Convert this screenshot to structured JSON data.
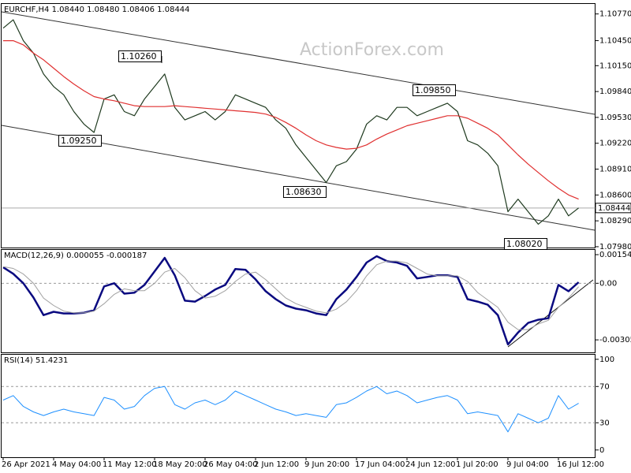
{
  "chart_data": [
    {
      "type": "line",
      "title": "EURCHF,H4  1.08440 1.08480 1.08406 1.08444",
      "watermark": "ActionForex.com",
      "ylim": [
        1.0797,
        1.1089
      ],
      "yticks": [
        {
          "value": 1.1077,
          "label": "1.10770"
        },
        {
          "value": 1.1045,
          "label": "1.10450"
        },
        {
          "value": 1.1015,
          "label": "1.10150"
        },
        {
          "value": 1.0984,
          "label": "1.09840"
        },
        {
          "value": 1.0953,
          "label": "1.09530"
        },
        {
          "value": 1.0922,
          "label": "1.09220"
        },
        {
          "value": 1.0891,
          "label": "1.08910"
        },
        {
          "value": 1.086,
          "label": "1.08600"
        },
        {
          "value": 1.0829,
          "label": "1.08290"
        },
        {
          "value": 1.0798,
          "label": "1.07980"
        }
      ],
      "last_price": 1.08444,
      "annotations": [
        "1.10260",
        "1.09250",
        "1.08630",
        "1.09850",
        "1.08020"
      ],
      "series": [
        {
          "name": "EURCHF",
          "color": "#1f3a1f",
          "values": [
            1.106,
            1.107,
            1.1045,
            1.103,
            1.1005,
            1.099,
            1.098,
            1.096,
            1.0945,
            1.0935,
            1.0975,
            1.098,
            1.096,
            1.0955,
            1.0975,
            1.099,
            1.1005,
            1.0965,
            1.095,
            1.0955,
            1.096,
            1.095,
            1.096,
            1.098,
            1.0975,
            1.097,
            1.0965,
            1.095,
            1.094,
            1.092,
            1.0905,
            1.089,
            1.0875,
            1.0895,
            1.09,
            1.0915,
            1.0945,
            1.0955,
            1.095,
            1.0965,
            1.0965,
            1.0955,
            1.096,
            1.0965,
            1.097,
            1.096,
            1.0925,
            1.092,
            1.091,
            1.0895,
            1.084,
            1.0855,
            1.084,
            1.0825,
            1.0835,
            1.0855,
            1.0835,
            1.08444
          ]
        },
        {
          "name": "MA",
          "color": "#e03030",
          "values": [
            1.1045,
            1.1045,
            1.104,
            1.103,
            1.1022,
            1.1012,
            1.1002,
            1.0993,
            1.0985,
            1.0978,
            1.0975,
            1.0973,
            1.097,
            1.0967,
            1.0966,
            1.0966,
            1.0966,
            1.0967,
            1.0966,
            1.0965,
            1.0964,
            1.0963,
            1.0962,
            1.0961,
            1.096,
            1.0959,
            1.0957,
            1.0953,
            1.0947,
            1.094,
            1.0932,
            1.0925,
            1.092,
            1.0917,
            1.0915,
            1.0916,
            1.092,
            1.0927,
            1.0933,
            1.0938,
            1.0943,
            1.0946,
            1.0949,
            1.0952,
            1.0955,
            1.0955,
            1.0952,
            1.0946,
            1.094,
            1.0932,
            1.092,
            1.0908,
            1.0897,
            1.0887,
            1.0877,
            1.0868,
            1.086,
            1.0855
          ]
        }
      ]
    },
    {
      "type": "line",
      "title": "MACD(12,26,9) 0.000055 -0.000187",
      "ylim": [
        -0.00373,
        0.0018
      ],
      "yticks": [
        0.001544,
        {
          "value": 0,
          "label": "0.00"
        },
        -0.003054
      ],
      "levels": [
        0
      ],
      "series": [
        {
          "name": "MACD",
          "color": "#0a0a80",
          "width": 2.5,
          "values": [
            0.00086,
            0.00051,
            0,
            -0.00077,
            -0.00172,
            -0.00154,
            -0.00163,
            -0.00163,
            -0.00159,
            -0.00146,
            -0.00017,
            0,
            -0.00056,
            -0.00051,
            -9e-05,
            0.00064,
            0.00137,
            0.00043,
            -0.00094,
            -0.00099,
            -0.00069,
            -0.00034,
            -9e-05,
            0.00077,
            0.00073,
            0.00021,
            -0.00043,
            -0.00086,
            -0.0012,
            -0.00137,
            -0.00146,
            -0.00163,
            -0.00172,
            -0.00086,
            -0.00034,
            0.00034,
            0.00112,
            0.00146,
            0.0012,
            0.00112,
            0.00094,
            0.00026,
            0.00034,
            0.00043,
            0.00043,
            0.00034,
            -0.00086,
            -0.00099,
            -0.00116,
            -0.00172,
            -0.0033,
            -0.00266,
            -0.00214,
            -0.00197,
            -0.00189,
            -9e-05,
            -0.00043,
            5.5e-05
          ]
        },
        {
          "name": "Signal",
          "color": "#a0a0a0",
          "width": 1,
          "values": [
            0.0009,
            0.0008,
            0.0005,
            0,
            -0.0008,
            -0.0012,
            -0.0015,
            -0.0016,
            -0.0016,
            -0.0015,
            -0.0011,
            -0.0006,
            -0.0003,
            -0.0004,
            -0.0004,
            0,
            0.0006,
            0.0008,
            0.0003,
            -0.0004,
            -0.0008,
            -0.0007,
            -0.0004,
            0.0001,
            0.0005,
            0.0006,
            0.0002,
            -0.0003,
            -0.0008,
            -0.0011,
            -0.0013,
            -0.0015,
            -0.0016,
            -0.0014,
            -0.001,
            -0.0004,
            0.0004,
            0.001,
            0.0012,
            0.0012,
            0.0011,
            0.0008,
            0.0005,
            0.0004,
            0.0004,
            0.0004,
            0.0001,
            -0.0005,
            -0.0009,
            -0.0013,
            -0.0021,
            -0.0025,
            -0.0025,
            -0.0022,
            -0.002,
            -0.0013,
            -0.0008,
            -0.000187
          ]
        }
      ]
    },
    {
      "type": "line",
      "title": "RSI(14) 51.4231",
      "ylim": [
        -8,
        105
      ],
      "yticks": [
        100,
        70,
        30,
        0
      ],
      "levels": [
        70,
        30
      ],
      "categories": [
        "26 Apr 2021",
        null,
        null,
        null,
        null,
        "4 May 04:00",
        null,
        null,
        null,
        null,
        "11 May 12:00",
        null,
        null,
        null,
        null,
        "18 May 20:00",
        null,
        null,
        null,
        null,
        "26 May 04:00",
        null,
        null,
        null,
        null,
        "2 Jun 12:00",
        null,
        null,
        null,
        null,
        "9 Jun 20:00",
        null,
        null,
        null,
        null,
        "17 Jun 04:00",
        null,
        null,
        null,
        null,
        "24 Jun 12:00",
        null,
        null,
        null,
        null,
        "1 Jul 20:00",
        null,
        null,
        null,
        null,
        "9 Jul 04:00",
        null,
        null,
        null,
        null,
        "16 Jul 12:00",
        null,
        null
      ],
      "series": [
        {
          "name": "RSI",
          "color": "#1e90ff",
          "width": 1,
          "values": [
            55,
            60,
            48,
            42,
            38,
            42,
            45,
            42,
            40,
            38,
            58,
            55,
            45,
            48,
            60,
            68,
            70,
            50,
            45,
            52,
            55,
            50,
            55,
            65,
            60,
            55,
            50,
            45,
            42,
            38,
            40,
            38,
            36,
            50,
            52,
            58,
            65,
            70,
            62,
            65,
            60,
            52,
            55,
            58,
            60,
            55,
            40,
            42,
            40,
            38,
            20,
            40,
            35,
            30,
            35,
            60,
            45,
            51.4231
          ]
        }
      ]
    }
  ]
}
